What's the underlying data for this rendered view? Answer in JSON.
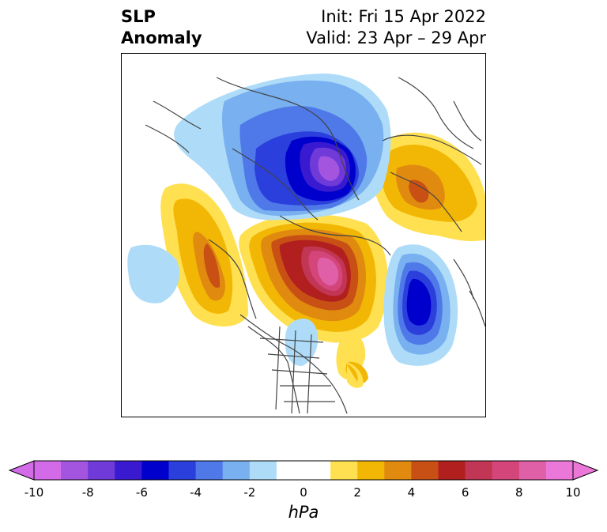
{
  "title": {
    "left_line1": "SLP",
    "left_line2": "Anomaly",
    "right_line1": "Init: Fri 15 Apr 2022",
    "right_line2": "Valid: 23 Apr – 29 Apr"
  },
  "colorbar": {
    "unit_label": "hPa",
    "ticks": [
      "-10",
      "-8",
      "-6",
      "-4",
      "-2",
      "0",
      "2",
      "4",
      "6",
      "8",
      "10"
    ],
    "colors": [
      "#d36be8",
      "#a455e0",
      "#6f3ad8",
      "#3a1ad0",
      "#0000cc",
      "#2a3fdc",
      "#4f78e8",
      "#78b0f0",
      "#aedcf8",
      "#ffffff",
      "#ffffff",
      "#ffe050",
      "#f2b705",
      "#e08a10",
      "#c85014",
      "#b21f1f",
      "#c23655",
      "#d4457a",
      "#e060a8",
      "#eb78d8"
    ],
    "extend": "both"
  }
}
